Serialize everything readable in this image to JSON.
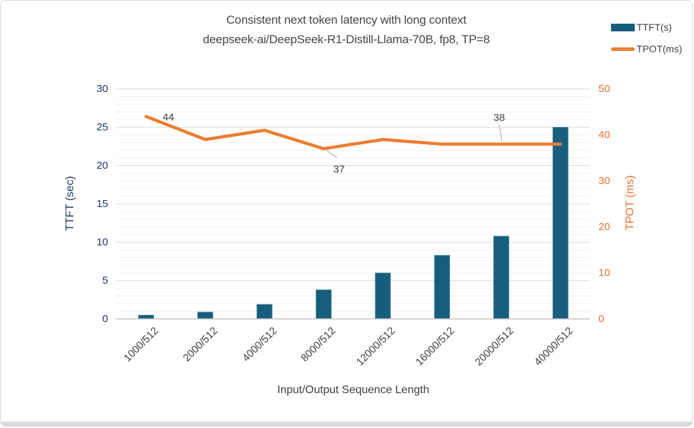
{
  "page": {
    "background": "#FFFFFF",
    "frame_border_color": "#D9D9D9",
    "bottom_bar_color": "#D9D9D9"
  },
  "chart_data": {
    "type": "combo",
    "title": "Consistent next token latency with long context",
    "subtitle": "deepseek-ai/DeepSeek-R1-Distill-Llama-70B, fp8, TP=8",
    "xlabel": "Input/Output Sequence Length",
    "categories": [
      "1000/512",
      "2000/512",
      "4000/512",
      "8000/512",
      "12000/512",
      "16000/512",
      "20000/512",
      "40000/512"
    ],
    "series": [
      {
        "name": "TTFT(s)",
        "type": "bar",
        "axis": "left",
        "color": "#175E7E",
        "values": [
          0.5,
          0.9,
          1.9,
          3.8,
          6.0,
          8.3,
          10.8,
          25.0
        ]
      },
      {
        "name": "TPOT(ms)",
        "type": "line",
        "axis": "right",
        "color": "#ED7D31",
        "values": [
          44,
          39,
          41,
          37,
          39,
          38,
          38,
          38
        ]
      }
    ],
    "left_axis": {
      "label": "TTFT (sec)",
      "ticks": [
        0,
        5,
        10,
        15,
        20,
        25,
        30
      ],
      "lim": [
        0,
        30
      ],
      "color": "#1F3864"
    },
    "right_axis": {
      "label": "TPOT (ms)",
      "ticks": [
        0,
        10,
        20,
        30,
        40,
        50
      ],
      "lim": [
        0,
        50
      ],
      "color": "#E97132"
    },
    "annotations": [
      {
        "series": "TPOT(ms)",
        "index": 0,
        "text": "44",
        "leader": false
      },
      {
        "series": "TPOT(ms)",
        "index": 3,
        "text": "37",
        "leader": true
      },
      {
        "series": "TPOT(ms)",
        "index": 6,
        "text": "38",
        "leader": true
      }
    ],
    "grid": {
      "minor_step_left": 1,
      "major_step_left": 5,
      "minor_color": "#F2F2F2",
      "major_color": "#DCDCDC",
      "axis_line_color": "#C3C3C3"
    },
    "data_label_color": "#404040",
    "leader_line_color": "#A6A6A6",
    "title_color": "#464646",
    "legend_position": "top-right",
    "grid_on": true
  }
}
